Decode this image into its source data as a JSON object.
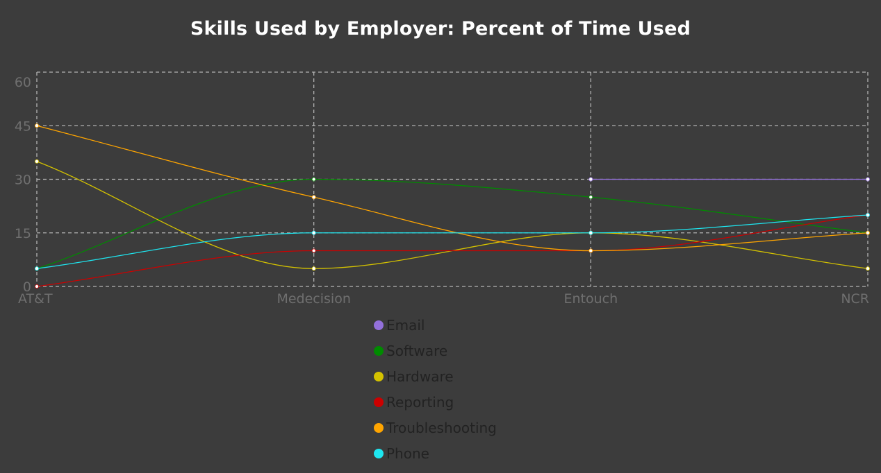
{
  "chart_data": {
    "type": "line",
    "title": "Skills Used by Employer: Percent of Time Used",
    "xlabel": "",
    "ylabel": "",
    "categories": [
      "AT&T",
      "Medecision",
      "Entouch",
      "NCR"
    ],
    "yticks": [
      0,
      15,
      30,
      45,
      60
    ],
    "ylim": [
      0,
      60
    ],
    "grid": true,
    "legend_position": "bottom",
    "series": [
      {
        "name": "Email",
        "color": "#9370db",
        "values": [
          null,
          null,
          30,
          30
        ]
      },
      {
        "name": "Software",
        "color": "#008b00",
        "values": [
          5,
          30,
          25,
          15
        ]
      },
      {
        "name": "Hardware",
        "color": "#d4c200",
        "values": [
          35,
          5,
          15,
          5
        ]
      },
      {
        "name": "Reporting",
        "color": "#cc0000",
        "values": [
          0,
          10,
          10,
          20
        ]
      },
      {
        "name": "Troubleshooting",
        "color": "#ffa500",
        "values": [
          45,
          25,
          10,
          15
        ]
      },
      {
        "name": "Phone",
        "color": "#1ee6f0",
        "values": [
          5,
          15,
          15,
          20
        ]
      }
    ]
  }
}
